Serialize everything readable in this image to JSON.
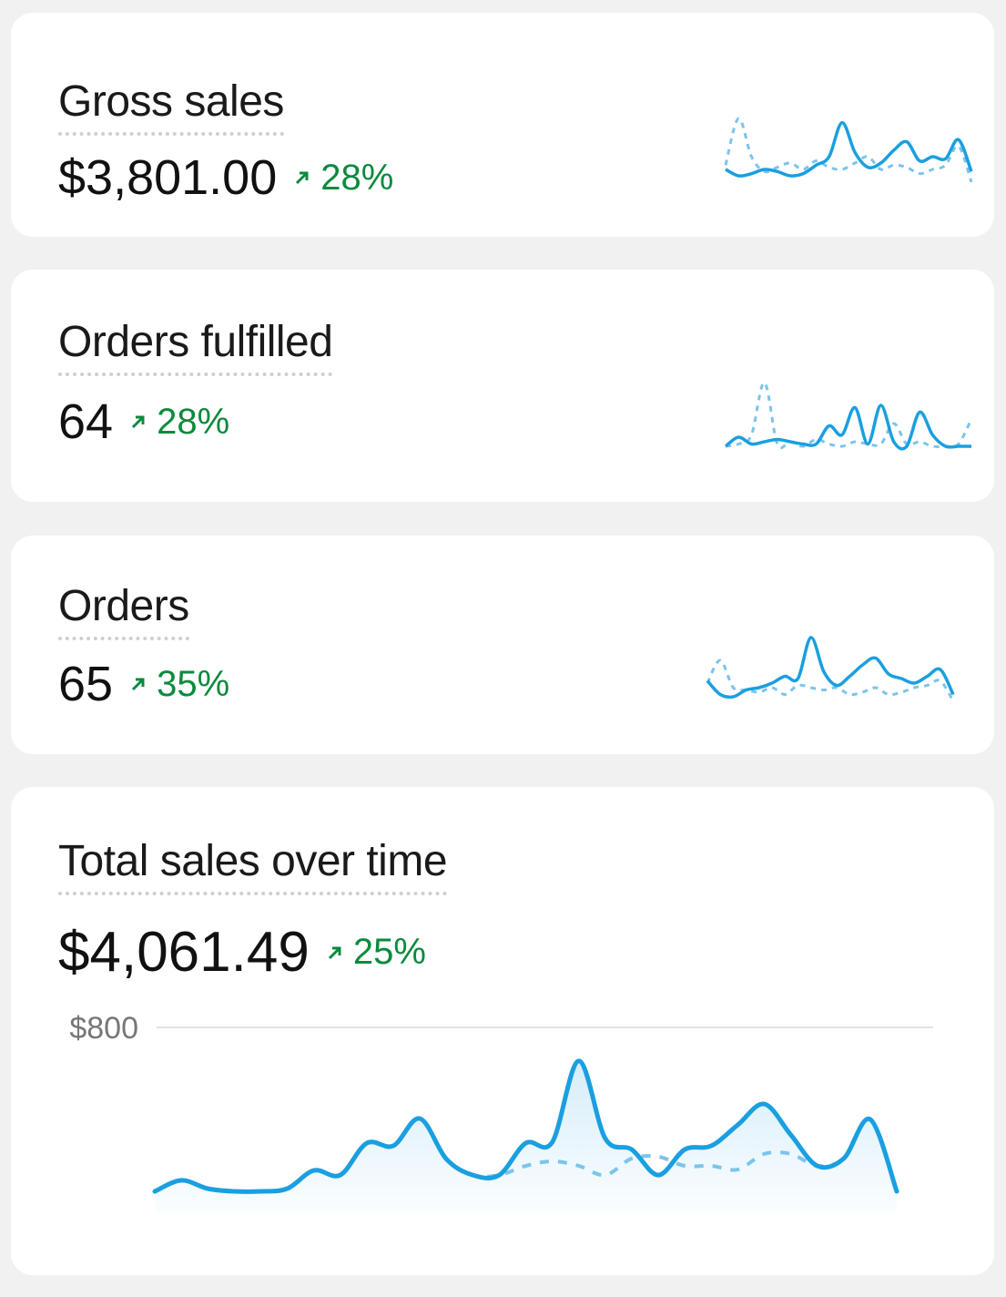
{
  "cards": [
    {
      "title": "Gross sales",
      "value": "$3,801.00",
      "change": "28%",
      "sparkline": {
        "current": [
          18,
          12,
          14,
          18,
          16,
          12,
          14,
          22,
          30,
          62,
          34,
          20,
          24,
          36,
          44,
          26,
          30,
          28,
          46,
          16
        ],
        "previous": [
          22,
          66,
          30,
          16,
          20,
          24,
          18,
          26,
          20,
          18,
          24,
          30,
          18,
          22,
          20,
          14,
          18,
          22,
          40,
          6
        ]
      }
    },
    {
      "title": "Orders fulfilled",
      "value": "64",
      "change": "28%",
      "sparkline": {
        "current": [
          10,
          18,
          12,
          14,
          16,
          14,
          12,
          12,
          28,
          20,
          44,
          12,
          46,
          14,
          10,
          40,
          20,
          10,
          10,
          10
        ],
        "previous": [
          10,
          12,
          20,
          66,
          12,
          14,
          10,
          16,
          12,
          10,
          14,
          12,
          12,
          30,
          12,
          14,
          10,
          10,
          12,
          34
        ]
      }
    },
    {
      "title": "Orders",
      "value": "65",
      "change": "35%",
      "sparkline": {
        "current": [
          26,
          14,
          12,
          18,
          20,
          24,
          30,
          28,
          64,
          34,
          22,
          30,
          40,
          46,
          32,
          28,
          24,
          30,
          36,
          14
        ],
        "previous": [
          24,
          44,
          20,
          18,
          16,
          20,
          14,
          22,
          20,
          18,
          20,
          14,
          16,
          20,
          14,
          16,
          20,
          22,
          26,
          8
        ]
      }
    },
    {
      "title": "Total sales over time",
      "value": "$4,061.49",
      "change": "25%",
      "chart_data": {
        "type": "line",
        "color": "#1a9fe0",
        "comparison_color": "#7cc4ea",
        "ylim": [
          0,
          800
        ],
        "yticks": [
          {
            "value": 800,
            "label": "$800"
          }
        ],
        "grid": true,
        "current": [
          87,
          135,
          99,
          87,
          87,
          99,
          178,
          158,
          297,
          285,
          404,
          228,
          158,
          158,
          297,
          301,
          654,
          317,
          269,
          158,
          269,
          285,
          376,
          467,
          333,
          198,
          230,
          400,
          87
        ],
        "previous": [
          87,
          135,
          99,
          87,
          87,
          99,
          178,
          158,
          297,
          285,
          404,
          228,
          158,
          158,
          198,
          218,
          198,
          158,
          230,
          238,
          198,
          198,
          182,
          250,
          250,
          198,
          230,
          400,
          87
        ]
      }
    }
  ]
}
